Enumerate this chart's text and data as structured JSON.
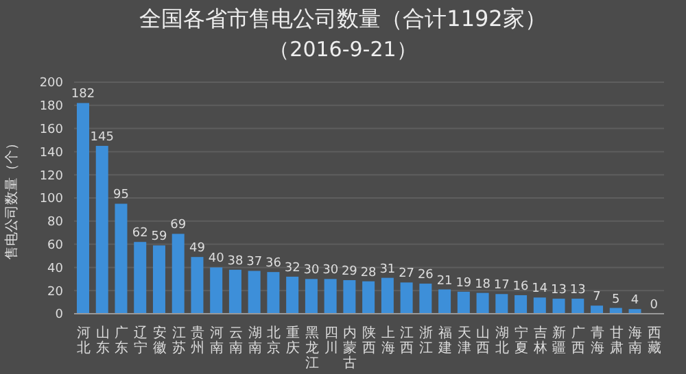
{
  "chart_data": {
    "type": "bar",
    "title": "全国各省市售电公司数量（合计1192家）",
    "subtitle": "（2016-9-21）",
    "ylabel": "售电公司数量（个）",
    "categories": [
      "河北",
      "山东",
      "广东",
      "辽宁",
      "安徽",
      "江苏",
      "贵州",
      "河南",
      "云南",
      "湖南",
      "北京",
      "重庆",
      "黑龙江",
      "四川",
      "内蒙古",
      "陕西",
      "上海",
      "江西",
      "浙江",
      "福建",
      "天津",
      "山西",
      "湖北",
      "宁夏",
      "吉林",
      "新疆",
      "广西",
      "青海",
      "甘肃",
      "海南",
      "西藏"
    ],
    "values": [
      182,
      145,
      95,
      62,
      59,
      69,
      49,
      40,
      38,
      37,
      36,
      32,
      30,
      30,
      29,
      28,
      31,
      27,
      26,
      21,
      19,
      18,
      17,
      16,
      14,
      13,
      13,
      7,
      5,
      4,
      0
    ],
    "color": "#3d8fd9",
    "ylim": [
      0,
      200
    ],
    "yticks": [
      0,
      20,
      40,
      60,
      80,
      100,
      120,
      140,
      160,
      180,
      200
    ],
    "grid": "y",
    "data_labels": true
  }
}
